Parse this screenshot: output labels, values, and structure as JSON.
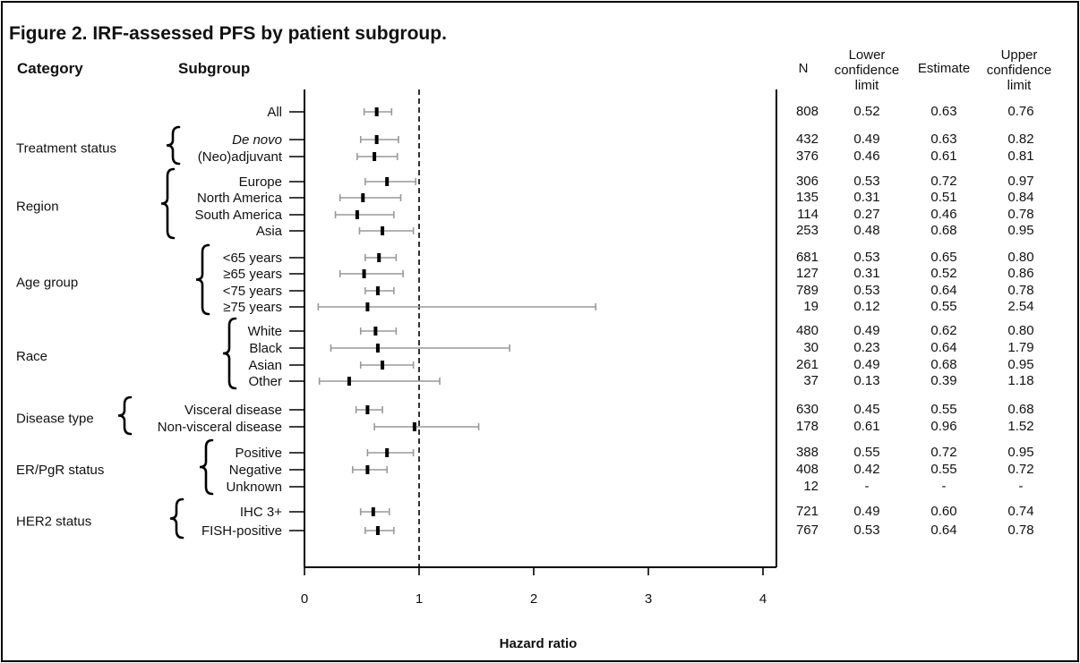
{
  "chart_data": {
    "type": "forest",
    "title": "Figure 2. IRF-assessed PFS by patient subgroup.",
    "xlabel": "Hazard ratio",
    "xlim": [
      0,
      4
    ],
    "xticks": [
      0,
      1,
      2,
      3,
      4
    ],
    "reference_line": 1,
    "headers": {
      "category": "Category",
      "subgroup": "Subgroup",
      "n": "N",
      "lower": "Lower confidence limit",
      "estimate": "Estimate",
      "upper": "Upper confidence limit"
    },
    "groups": [
      {
        "category": "",
        "rows": [
          {
            "subgroup": "All",
            "n": "808",
            "lower": "0.52",
            "estimate": "0.63",
            "upper": "0.76"
          }
        ]
      },
      {
        "category": "Treatment status",
        "rows": [
          {
            "subgroup": "De novo",
            "italic": true,
            "n": "432",
            "lower": "0.49",
            "estimate": "0.63",
            "upper": "0.82"
          },
          {
            "subgroup": "(Neo)adjuvant",
            "n": "376",
            "lower": "0.46",
            "estimate": "0.61",
            "upper": "0.81"
          }
        ]
      },
      {
        "category": "Region",
        "rows": [
          {
            "subgroup": "Europe",
            "n": "306",
            "lower": "0.53",
            "estimate": "0.72",
            "upper": "0.97"
          },
          {
            "subgroup": "North America",
            "n": "135",
            "lower": "0.31",
            "estimate": "0.51",
            "upper": "0.84"
          },
          {
            "subgroup": "South America",
            "n": "114",
            "lower": "0.27",
            "estimate": "0.46",
            "upper": "0.78"
          },
          {
            "subgroup": "Asia",
            "n": "253",
            "lower": "0.48",
            "estimate": "0.68",
            "upper": "0.95"
          }
        ]
      },
      {
        "category": "Age group",
        "rows": [
          {
            "subgroup": "<65 years",
            "n": "681",
            "lower": "0.53",
            "estimate": "0.65",
            "upper": "0.80"
          },
          {
            "subgroup": "≥65 years",
            "n": "127",
            "lower": "0.31",
            "estimate": "0.52",
            "upper": "0.86"
          },
          {
            "subgroup": "<75 years",
            "n": "789",
            "lower": "0.53",
            "estimate": "0.64",
            "upper": "0.78"
          },
          {
            "subgroup": "≥75 years",
            "n": "19",
            "lower": "0.12",
            "estimate": "0.55",
            "upper": "2.54"
          }
        ]
      },
      {
        "category": "Race",
        "rows": [
          {
            "subgroup": "White",
            "n": "480",
            "lower": "0.49",
            "estimate": "0.62",
            "upper": "0.80"
          },
          {
            "subgroup": "Black",
            "n": "30",
            "lower": "0.23",
            "estimate": "0.64",
            "upper": "1.79"
          },
          {
            "subgroup": "Asian",
            "n": "261",
            "lower": "0.49",
            "estimate": "0.68",
            "upper": "0.95"
          },
          {
            "subgroup": "Other",
            "n": "37",
            "lower": "0.13",
            "estimate": "0.39",
            "upper": "1.18"
          }
        ]
      },
      {
        "category": "Disease type",
        "rows": [
          {
            "subgroup": "Visceral disease",
            "n": "630",
            "lower": "0.45",
            "estimate": "0.55",
            "upper": "0.68"
          },
          {
            "subgroup": "Non-visceral disease",
            "n": "178",
            "lower": "0.61",
            "estimate": "0.96",
            "upper": "1.52"
          }
        ]
      },
      {
        "category": "ER/PgR status",
        "rows": [
          {
            "subgroup": "Positive",
            "n": "388",
            "lower": "0.55",
            "estimate": "0.72",
            "upper": "0.95"
          },
          {
            "subgroup": "Negative",
            "n": "408",
            "lower": "0.42",
            "estimate": "0.55",
            "upper": "0.72"
          },
          {
            "subgroup": "Unknown",
            "n": "12",
            "lower": "-",
            "estimate": "-",
            "upper": "-"
          }
        ]
      },
      {
        "category": "HER2 status",
        "rows": [
          {
            "subgroup": "IHC 3+",
            "n": "721",
            "lower": "0.49",
            "estimate": "0.60",
            "upper": "0.74"
          },
          {
            "subgroup": "FISH-positive",
            "n": "767",
            "lower": "0.53",
            "estimate": "0.64",
            "upper": "0.78"
          }
        ]
      }
    ]
  }
}
